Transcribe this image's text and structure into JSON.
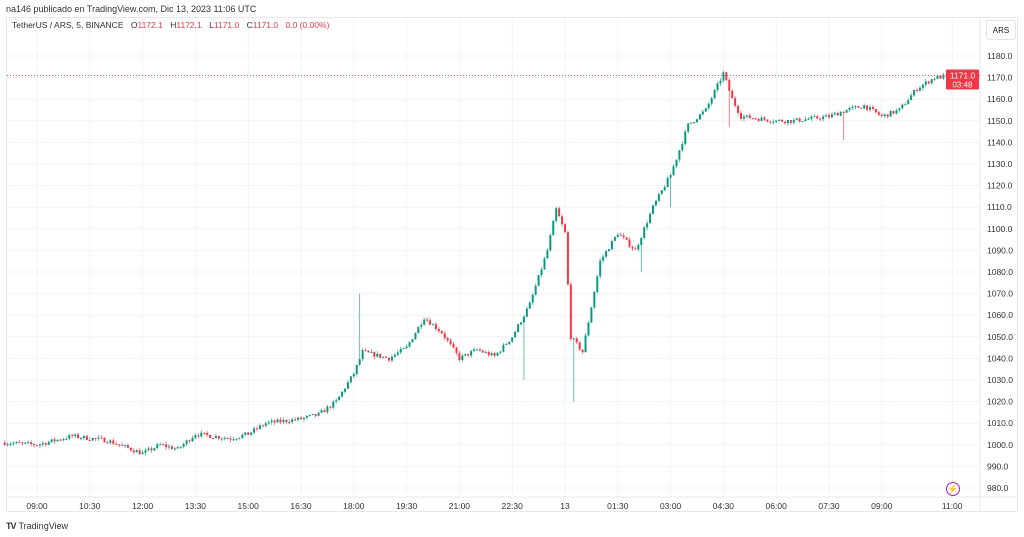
{
  "published": "na146 publicado en TradingView.com, Dic 13, 2023 11:06 UTC",
  "legend": {
    "symbol": "TetherUS / ARS, 5, BINANCE",
    "o_label": "O",
    "o": "1172.1",
    "h_label": "H",
    "h": "1172.1",
    "l_label": "L",
    "l": "1171.0",
    "c_label": "C",
    "c": "1171.0",
    "change": "0.0 (0.00%)"
  },
  "currency_button": "ARS",
  "brand": "TradingView",
  "colors": {
    "up": "#089981",
    "down": "#f23645",
    "grid": "#f0f3fa"
  },
  "chart_data": {
    "type": "candlestick",
    "title": "TetherUS / ARS, 5, BINANCE",
    "interval_minutes": 5,
    "ylim": [
      975,
      1188
    ],
    "y_ticks": [
      980,
      990,
      1000,
      1010,
      1020,
      1030,
      1040,
      1050,
      1060,
      1070,
      1080,
      1090,
      1100,
      1110,
      1120,
      1130,
      1140,
      1150,
      1160,
      1170,
      1180
    ],
    "x_ticks": [
      {
        "label": "09:00",
        "t": "12 09:00"
      },
      {
        "label": "10:30",
        "t": "12 10:30"
      },
      {
        "label": "12:00",
        "t": "12 12:00"
      },
      {
        "label": "13:30",
        "t": "12 13:30"
      },
      {
        "label": "15:00",
        "t": "12 15:00"
      },
      {
        "label": "16:30",
        "t": "12 16:30"
      },
      {
        "label": "18:00",
        "t": "12 18:00"
      },
      {
        "label": "19:30",
        "t": "12 19:30"
      },
      {
        "label": "21:00",
        "t": "12 21:00"
      },
      {
        "label": "22:30",
        "t": "12 22:30"
      },
      {
        "label": "13",
        "t": "13 00:00"
      },
      {
        "label": "01:30",
        "t": "13 01:30"
      },
      {
        "label": "03:00",
        "t": "13 03:00"
      },
      {
        "label": "04:30",
        "t": "13 04:30"
      },
      {
        "label": "06:00",
        "t": "13 06:00"
      },
      {
        "label": "07:30",
        "t": "13 07:30"
      },
      {
        "label": "09:00",
        "t": "13 09:00"
      },
      {
        "label": "11:00",
        "t": "13 11:00"
      }
    ],
    "xlim": [
      "12 08:05",
      "13 11:30"
    ],
    "close_path": [
      [
        "12 08:05",
        1001
      ],
      [
        "12 09:00",
        1000
      ],
      [
        "12 10:00",
        1004
      ],
      [
        "12 11:00",
        1002
      ],
      [
        "12 12:00",
        996
      ],
      [
        "12 12:30",
        1000
      ],
      [
        "12 13:00",
        998
      ],
      [
        "12 13:30",
        1005
      ],
      [
        "12 14:30",
        1003
      ],
      [
        "12 15:00",
        1005
      ],
      [
        "12 15:30",
        1010
      ],
      [
        "12 16:30",
        1012
      ],
      [
        "12 17:00",
        1014
      ],
      [
        "12 17:30",
        1020
      ],
      [
        "12 18:00",
        1033
      ],
      [
        "12 18:15",
        1043
      ],
      [
        "12 19:00",
        1040
      ],
      [
        "12 19:30",
        1045
      ],
      [
        "12 20:00",
        1059
      ],
      [
        "12 20:30",
        1052
      ],
      [
        "12 21:00",
        1040
      ],
      [
        "12 21:30",
        1044
      ],
      [
        "12 22:00",
        1041
      ],
      [
        "12 22:30",
        1050
      ],
      [
        "12 23:00",
        1065
      ],
      [
        "12 23:30",
        1090
      ],
      [
        "12 23:45",
        1109
      ],
      [
        "13 00:00",
        1098
      ],
      [
        "13 00:10",
        1050
      ],
      [
        "13 00:30",
        1043
      ],
      [
        "13 01:00",
        1085
      ],
      [
        "13 01:30",
        1098
      ],
      [
        "13 02:00",
        1090
      ],
      [
        "13 02:30",
        1110
      ],
      [
        "13 03:00",
        1125
      ],
      [
        "13 03:30",
        1148
      ],
      [
        "13 04:00",
        1155
      ],
      [
        "13 04:30",
        1172
      ],
      [
        "13 04:45",
        1160
      ],
      [
        "13 05:00",
        1152
      ],
      [
        "13 06:00",
        1150
      ],
      [
        "13 06:30",
        1150
      ],
      [
        "13 07:30",
        1152
      ],
      [
        "13 08:00",
        1155
      ],
      [
        "13 08:30",
        1157
      ],
      [
        "13 09:00",
        1152
      ],
      [
        "13 09:30",
        1155
      ],
      [
        "13 10:00",
        1165
      ],
      [
        "13 10:30",
        1170
      ],
      [
        "13 11:05",
        1171
      ]
    ],
    "wick_extremes": [
      {
        "t": "12 18:10",
        "high": 1070
      },
      {
        "t": "12 22:50",
        "low": 1030
      },
      {
        "t": "13 00:15",
        "low": 1020
      },
      {
        "t": "13 02:10",
        "low": 1080
      },
      {
        "t": "13 03:00",
        "low": 1110
      },
      {
        "t": "13 04:40",
        "low": 1147
      },
      {
        "t": "13 07:55",
        "low": 1141
      }
    ],
    "last_price": {
      "value": 1171.0,
      "label": "1171.0",
      "countdown": "03:48"
    }
  }
}
